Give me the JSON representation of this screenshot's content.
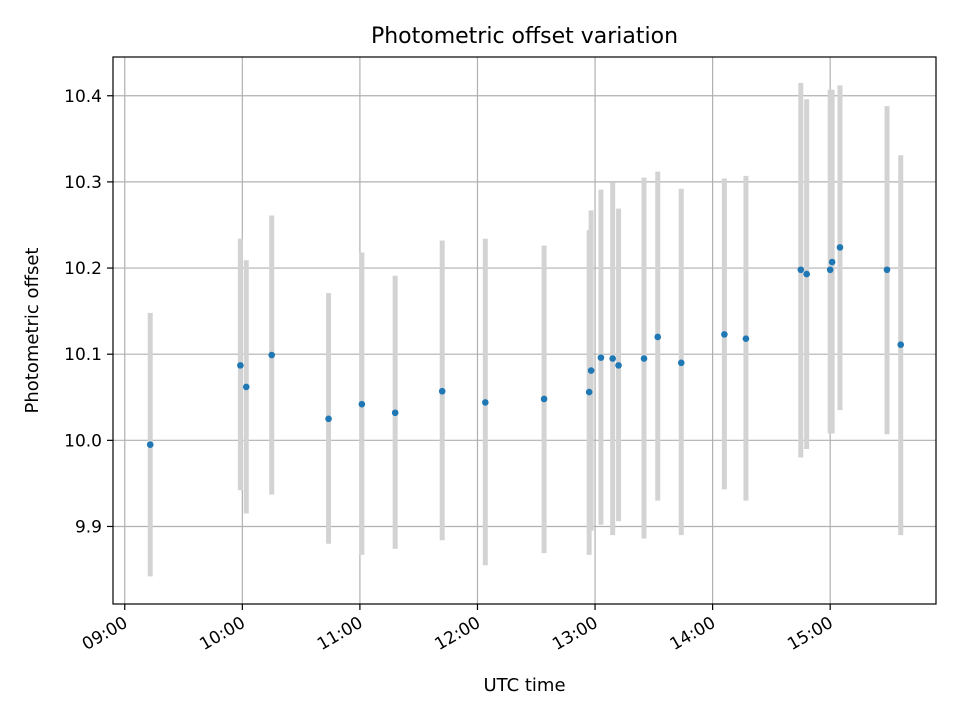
{
  "chart_data": {
    "type": "scatter",
    "title": "Photometric offset variation",
    "xlabel": "UTC time",
    "ylabel": "Photometric offset",
    "x_tick_labels": [
      "09:00",
      "10:00",
      "11:00",
      "12:00",
      "13:00",
      "14:00",
      "15:00"
    ],
    "y_tick_labels": [
      "9.9",
      "10.0",
      "10.1",
      "10.2",
      "10.3",
      "10.4"
    ],
    "y_ticks": [
      9.9,
      10.0,
      10.1,
      10.2,
      10.3,
      10.4
    ],
    "x_ticks": [
      "09:00",
      "10:00",
      "11:00",
      "12:00",
      "13:00",
      "14:00",
      "15:00"
    ],
    "xlim": [
      "08:54",
      "15:54"
    ],
    "ylim": [
      9.81,
      10.445
    ],
    "grid": true,
    "colors": {
      "point": "#1f77b4",
      "error_bar": "#d3d3d3",
      "grid": "#b0b0b0"
    },
    "series": [
      {
        "points": [
          {
            "x": "09:13",
            "y": 9.995,
            "ylow": 9.842,
            "yhigh": 10.148
          },
          {
            "x": "09:59",
            "y": 10.087,
            "ylow": 9.942,
            "yhigh": 10.234
          },
          {
            "x": "10:02",
            "y": 10.062,
            "ylow": 9.915,
            "yhigh": 10.209
          },
          {
            "x": "10:15",
            "y": 10.099,
            "ylow": 9.937,
            "yhigh": 10.261
          },
          {
            "x": "10:44",
            "y": 10.025,
            "ylow": 9.88,
            "yhigh": 10.171
          },
          {
            "x": "11:01",
            "y": 10.042,
            "ylow": 9.867,
            "yhigh": 10.218
          },
          {
            "x": "11:18",
            "y": 10.032,
            "ylow": 9.874,
            "yhigh": 10.191
          },
          {
            "x": "11:42",
            "y": 10.057,
            "ylow": 9.884,
            "yhigh": 10.232
          },
          {
            "x": "12:04",
            "y": 10.044,
            "ylow": 9.855,
            "yhigh": 10.234
          },
          {
            "x": "12:34",
            "y": 10.048,
            "ylow": 9.869,
            "yhigh": 10.226
          },
          {
            "x": "12:57",
            "y": 10.056,
            "ylow": 9.867,
            "yhigh": 10.244
          },
          {
            "x": "12:58",
            "y": 10.081,
            "ylow": 9.895,
            "yhigh": 10.267
          },
          {
            "x": "13:03",
            "y": 10.096,
            "ylow": 9.902,
            "yhigh": 10.291
          },
          {
            "x": "13:09",
            "y": 10.095,
            "ylow": 9.89,
            "yhigh": 10.299
          },
          {
            "x": "13:12",
            "y": 10.087,
            "ylow": 9.906,
            "yhigh": 10.269
          },
          {
            "x": "13:25",
            "y": 10.095,
            "ylow": 9.886,
            "yhigh": 10.305
          },
          {
            "x": "13:32",
            "y": 10.12,
            "ylow": 9.93,
            "yhigh": 10.312
          },
          {
            "x": "13:44",
            "y": 10.09,
            "ylow": 9.89,
            "yhigh": 10.292
          },
          {
            "x": "14:06",
            "y": 10.123,
            "ylow": 9.943,
            "yhigh": 10.304
          },
          {
            "x": "14:17",
            "y": 10.118,
            "ylow": 9.93,
            "yhigh": 10.307
          },
          {
            "x": "14:45",
            "y": 10.198,
            "ylow": 9.98,
            "yhigh": 10.415
          },
          {
            "x": "14:48",
            "y": 10.193,
            "ylow": 9.99,
            "yhigh": 10.396
          },
          {
            "x": "15:00",
            "y": 10.198,
            "ylow": 10.008,
            "yhigh": 10.407
          },
          {
            "x": "15:01",
            "y": 10.207,
            "ylow": 10.008,
            "yhigh": 10.407
          },
          {
            "x": "15:05",
            "y": 10.224,
            "ylow": 10.035,
            "yhigh": 10.412
          },
          {
            "x": "15:29",
            "y": 10.198,
            "ylow": 10.007,
            "yhigh": 10.388
          },
          {
            "x": "15:36",
            "y": 10.111,
            "ylow": 9.89,
            "yhigh": 10.331
          }
        ]
      }
    ]
  }
}
